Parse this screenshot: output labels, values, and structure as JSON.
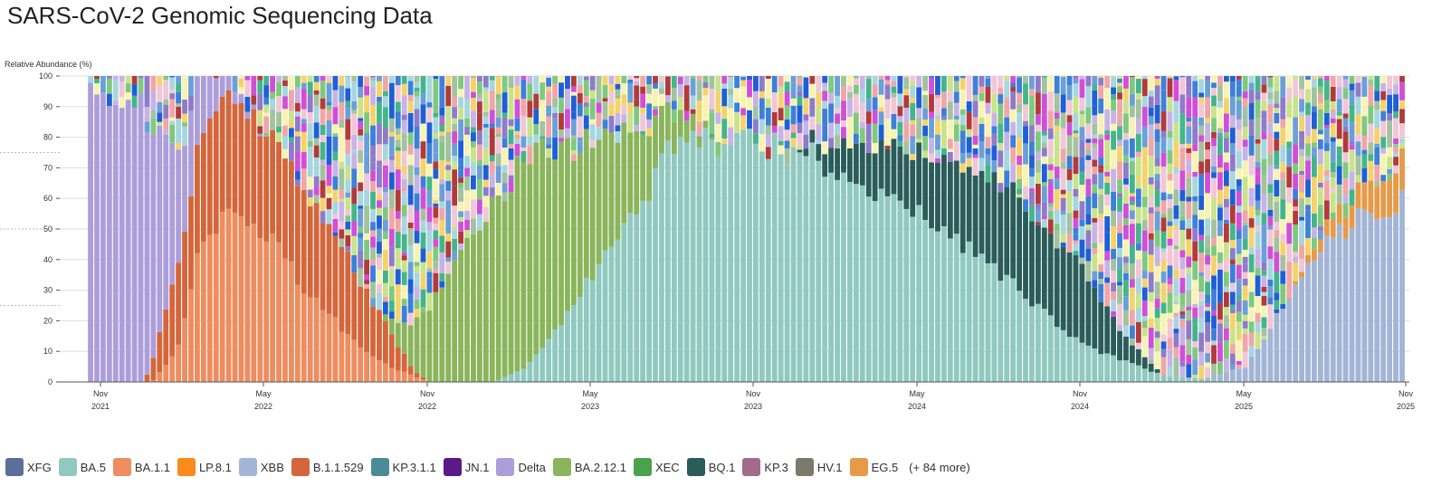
{
  "page": {
    "title": "SARS-CoV-2 Genomic Sequencing Data"
  },
  "chart_data": {
    "type": "bar",
    "stacked": true,
    "ylabel": "Relative Abundance (%)",
    "ylim": [
      0,
      100
    ],
    "yticks": [
      "0",
      "10",
      "20",
      "30",
      "40",
      "50",
      "60",
      "70",
      "80",
      "90",
      "100"
    ],
    "x_ticks": [
      {
        "month": "Nov",
        "year": "2021"
      },
      {
        "month": "May",
        "year": "2022"
      },
      {
        "month": "Nov",
        "year": "2022"
      },
      {
        "month": "May",
        "year": "2023"
      },
      {
        "month": "Nov",
        "year": "2023"
      },
      {
        "month": "May",
        "year": "2024"
      },
      {
        "month": "Nov",
        "year": "2024"
      },
      {
        "month": "May",
        "year": "2025"
      },
      {
        "month": "Nov",
        "year": "2025"
      }
    ],
    "x_range": [
      "2021-11",
      "2025-11"
    ],
    "bar_interval": "weekly",
    "legend_placement": "bottom",
    "legend_more": "(+ 84 more)",
    "series": [
      {
        "name": "XFG",
        "color": "#5b6e9c",
        "keyframes": [
          [
            0,
            0
          ],
          [
            41.5,
            0
          ],
          [
            42,
            5
          ],
          [
            43,
            25
          ],
          [
            44,
            55
          ],
          [
            45,
            70
          ],
          [
            46,
            80
          ],
          [
            48,
            90
          ]
        ]
      },
      {
        "name": "BA.5",
        "color": "#90c9c0",
        "keyframes": [
          [
            0,
            0
          ],
          [
            4.8,
            0
          ],
          [
            5.2,
            5
          ],
          [
            5.6,
            18
          ],
          [
            6.0,
            35
          ],
          [
            6.5,
            55
          ],
          [
            7,
            78
          ],
          [
            8,
            80
          ],
          [
            9,
            70
          ],
          [
            10,
            55
          ],
          [
            11,
            35
          ],
          [
            12,
            12
          ],
          [
            13,
            2
          ],
          [
            14,
            0
          ]
        ]
      },
      {
        "name": "BA.1.1",
        "color": "#ee8d5f",
        "keyframes": [
          [
            0,
            0
          ],
          [
            0.6,
            0
          ],
          [
            0.9,
            10
          ],
          [
            1.2,
            45
          ],
          [
            1.6,
            60
          ],
          [
            2,
            48
          ],
          [
            2.5,
            30
          ],
          [
            3,
            15
          ],
          [
            3.5,
            5
          ],
          [
            4,
            0
          ]
        ]
      },
      {
        "name": "LP.8.1",
        "color": "#fb8a1b",
        "keyframes": [
          [
            0,
            0
          ],
          [
            36.3,
            0
          ],
          [
            36.8,
            8
          ],
          [
            38,
            25
          ],
          [
            39,
            45
          ],
          [
            40,
            70
          ],
          [
            40.6,
            60
          ],
          [
            41.2,
            40
          ],
          [
            42,
            10
          ],
          [
            43,
            0
          ]
        ]
      },
      {
        "name": "XBB",
        "color": "#a2b5d6",
        "keyframes": [
          [
            0,
            0
          ],
          [
            13.5,
            0
          ],
          [
            14,
            5
          ],
          [
            15,
            48
          ],
          [
            16,
            60
          ],
          [
            17,
            55
          ],
          [
            18,
            28
          ],
          [
            19,
            15
          ],
          [
            20,
            12
          ],
          [
            21,
            8
          ],
          [
            22,
            2
          ],
          [
            23,
            0
          ]
        ]
      },
      {
        "name": "B.1.1.529",
        "color": "#d4663b",
        "keyframes": [
          [
            0,
            0
          ],
          [
            0.5,
            0
          ],
          [
            0.8,
            20
          ],
          [
            1.2,
            38
          ],
          [
            2,
            35
          ],
          [
            2.8,
            30
          ],
          [
            3.4,
            15
          ],
          [
            3.8,
            2
          ],
          [
            4,
            0
          ]
        ]
      },
      {
        "name": "KP.3.1.1",
        "color": "#4b8b99",
        "keyframes": [
          [
            0,
            0
          ],
          [
            25.5,
            0
          ],
          [
            26.5,
            5
          ],
          [
            27.5,
            25
          ],
          [
            28.5,
            40
          ],
          [
            29.5,
            40
          ],
          [
            30.5,
            35
          ],
          [
            31.5,
            30
          ],
          [
            33,
            22
          ],
          [
            34,
            15
          ],
          [
            35,
            5
          ],
          [
            36,
            0
          ]
        ]
      },
      {
        "name": "JN.1",
        "color": "#5a1a8a",
        "keyframes": [
          [
            0,
            0
          ],
          [
            19,
            0
          ],
          [
            20,
            5
          ],
          [
            21,
            45
          ],
          [
            22,
            75
          ],
          [
            23,
            78
          ],
          [
            24,
            50
          ],
          [
            25,
            20
          ],
          [
            26,
            8
          ],
          [
            27,
            3
          ],
          [
            30,
            2
          ],
          [
            35,
            2
          ],
          [
            38,
            2
          ],
          [
            40,
            1
          ],
          [
            44,
            0
          ]
        ]
      },
      {
        "name": "Delta",
        "color": "#ac9edb",
        "keyframes": [
          [
            0,
            98
          ],
          [
            0.5,
            90
          ],
          [
            1,
            30
          ],
          [
            1.5,
            5
          ],
          [
            2,
            0
          ]
        ]
      },
      {
        "name": "BA.2.12.1",
        "color": "#8ab55c",
        "keyframes": [
          [
            0,
            0
          ],
          [
            3.4,
            0
          ],
          [
            3.8,
            15
          ],
          [
            4.5,
            50
          ],
          [
            5.2,
            70
          ],
          [
            5.8,
            50
          ],
          [
            6.4,
            30
          ],
          [
            7,
            10
          ],
          [
            7.5,
            0
          ]
        ]
      },
      {
        "name": "XEC",
        "color": "#4aa34a",
        "keyframes": [
          [
            0,
            0
          ],
          [
            29,
            0
          ],
          [
            30,
            5
          ],
          [
            31,
            18
          ],
          [
            32,
            28
          ],
          [
            33,
            30
          ],
          [
            34,
            25
          ],
          [
            35,
            15
          ],
          [
            36,
            8
          ],
          [
            37,
            0
          ]
        ]
      },
      {
        "name": "BQ.1",
        "color": "#2a5c5a",
        "keyframes": [
          [
            0,
            0
          ],
          [
            8.5,
            0
          ],
          [
            9,
            10
          ],
          [
            10,
            20
          ],
          [
            11,
            30
          ],
          [
            12,
            25
          ],
          [
            12.5,
            8
          ],
          [
            13,
            0
          ]
        ]
      },
      {
        "name": "KP.3",
        "color": "#a36b8b",
        "keyframes": [
          [
            0,
            0
          ],
          [
            23.5,
            0
          ],
          [
            24,
            8
          ],
          [
            25,
            15
          ],
          [
            26,
            25
          ],
          [
            27,
            20
          ],
          [
            28,
            15
          ],
          [
            29,
            10
          ],
          [
            30,
            8
          ],
          [
            31,
            6
          ],
          [
            32,
            4
          ],
          [
            33,
            2
          ],
          [
            35,
            0
          ]
        ]
      },
      {
        "name": "HV.1",
        "color": "#7b7b6b",
        "keyframes": [
          [
            0,
            0
          ],
          [
            16.5,
            0
          ],
          [
            17,
            5
          ],
          [
            18,
            15
          ],
          [
            19,
            25
          ],
          [
            20,
            15
          ],
          [
            21,
            5
          ],
          [
            21.5,
            0
          ]
        ]
      },
      {
        "name": "EG.5",
        "color": "#e69b49",
        "keyframes": [
          [
            0,
            0
          ],
          [
            14.5,
            0
          ],
          [
            15,
            5
          ],
          [
            16,
            15
          ],
          [
            17,
            18
          ],
          [
            18,
            22
          ],
          [
            19,
            20
          ],
          [
            20,
            10
          ],
          [
            21,
            3
          ],
          [
            21.5,
            0
          ]
        ]
      }
    ]
  }
}
